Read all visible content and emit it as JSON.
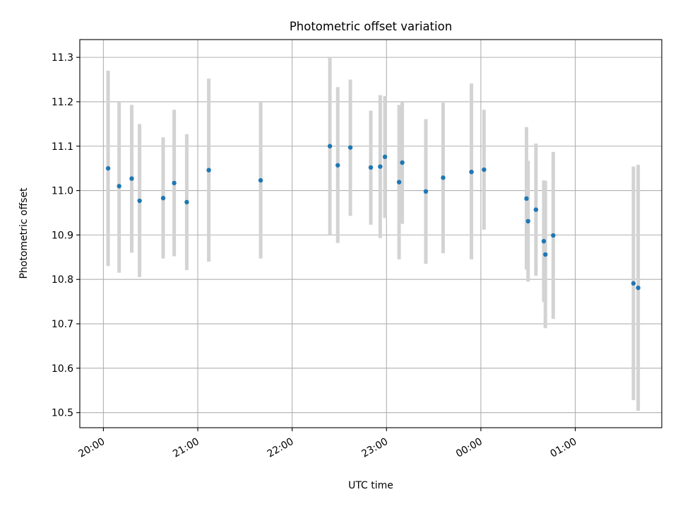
{
  "chart_data": {
    "type": "scatter",
    "title": "Photometric offset variation",
    "xlabel": "UTC time",
    "ylabel": "Photometric offset",
    "x_ticks": [
      "20:00",
      "21:00",
      "22:00",
      "23:00",
      "00:00",
      "01:00"
    ],
    "y_ticks": [
      "10.5",
      "10.6",
      "10.7",
      "10.8",
      "10.9",
      "11.0",
      "11.1",
      "11.2",
      "11.3"
    ],
    "xlim": [
      "19:45",
      "01:55"
    ],
    "ylim": [
      10.466,
      11.34
    ],
    "grid": true,
    "colors": {
      "points": "#1f77b4",
      "errorbars": "#d3d3d3",
      "grid": "#b0b0b0"
    },
    "series": [
      {
        "points": [
          {
            "x": "20:03",
            "y": 11.05,
            "ylo": 10.83,
            "yhi": 11.27
          },
          {
            "x": "20:10",
            "y": 11.01,
            "ylo": 10.815,
            "yhi": 11.2
          },
          {
            "x": "20:18",
            "y": 11.027,
            "ylo": 10.86,
            "yhi": 11.193
          },
          {
            "x": "20:23",
            "y": 10.977,
            "ylo": 10.805,
            "yhi": 11.15
          },
          {
            "x": "20:38",
            "y": 10.983,
            "ylo": 10.847,
            "yhi": 11.12
          },
          {
            "x": "20:45",
            "y": 11.017,
            "ylo": 10.852,
            "yhi": 11.182
          },
          {
            "x": "20:53",
            "y": 10.974,
            "ylo": 10.821,
            "yhi": 11.127
          },
          {
            "x": "21:07",
            "y": 11.046,
            "ylo": 10.84,
            "yhi": 11.252
          },
          {
            "x": "21:40",
            "y": 11.023,
            "ylo": 10.847,
            "yhi": 11.2
          },
          {
            "x": "22:24",
            "y": 11.1,
            "ylo": 10.9,
            "yhi": 11.3
          },
          {
            "x": "22:29",
            "y": 11.057,
            "ylo": 10.882,
            "yhi": 11.233
          },
          {
            "x": "22:37",
            "y": 11.097,
            "ylo": 10.943,
            "yhi": 11.25
          },
          {
            "x": "22:50",
            "y": 11.052,
            "ylo": 10.923,
            "yhi": 11.18
          },
          {
            "x": "22:56",
            "y": 11.054,
            "ylo": 10.893,
            "yhi": 11.215
          },
          {
            "x": "22:59",
            "y": 11.076,
            "ylo": 10.938,
            "yhi": 11.213
          },
          {
            "x": "23:08",
            "y": 11.019,
            "ylo": 10.845,
            "yhi": 11.193
          },
          {
            "x": "23:10",
            "y": 11.063,
            "ylo": 10.925,
            "yhi": 11.2
          },
          {
            "x": "23:25",
            "y": 10.998,
            "ylo": 10.835,
            "yhi": 11.161
          },
          {
            "x": "23:36",
            "y": 11.029,
            "ylo": 10.859,
            "yhi": 11.198
          },
          {
            "x": "23:54",
            "y": 11.042,
            "ylo": 10.845,
            "yhi": 11.241
          },
          {
            "x": "00:02",
            "y": 11.047,
            "ylo": 10.912,
            "yhi": 11.182
          },
          {
            "x": "00:29",
            "y": 10.982,
            "ylo": 10.822,
            "yhi": 11.143
          },
          {
            "x": "00:30",
            "y": 10.931,
            "ylo": 10.795,
            "yhi": 11.067
          },
          {
            "x": "00:35",
            "y": 10.957,
            "ylo": 10.808,
            "yhi": 11.106
          },
          {
            "x": "00:40",
            "y": 10.886,
            "ylo": 10.749,
            "yhi": 11.023
          },
          {
            "x": "00:41",
            "y": 10.856,
            "ylo": 10.69,
            "yhi": 11.022
          },
          {
            "x": "00:46",
            "y": 10.899,
            "ylo": 10.711,
            "yhi": 11.087
          },
          {
            "x": "01:37",
            "y": 10.791,
            "ylo": 10.528,
            "yhi": 11.054
          },
          {
            "x": "01:40",
            "y": 10.781,
            "ylo": 10.504,
            "yhi": 11.058
          }
        ]
      }
    ]
  }
}
